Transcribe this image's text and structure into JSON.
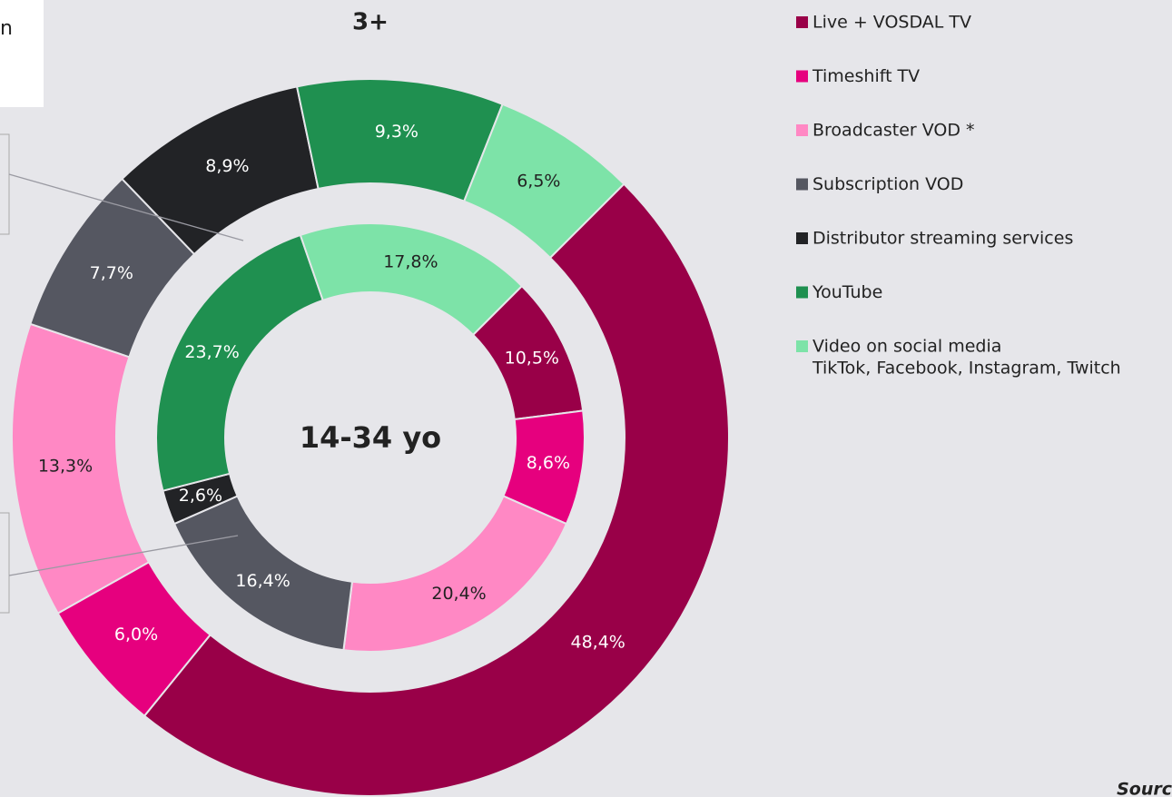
{
  "chart_data": {
    "type": "donut",
    "categories": [
      "Live + VOSDAL TV",
      "Timeshift TV",
      "Broadcaster VOD *",
      "Subscription VOD",
      "Distributor streaming services",
      "YouTube",
      "Video on social media"
    ],
    "legend_subtitle": "TikTok, Facebook, Instagram, Twitch",
    "colors": [
      "#990048",
      "#e6007e",
      "#ff88c4",
      "#555761",
      "#222326",
      "#1f9050",
      "#7de3a8"
    ],
    "series": [
      {
        "name": "3+",
        "values": [
          48.4,
          6.0,
          13.3,
          7.7,
          8.9,
          9.3,
          6.5
        ],
        "value_labels": [
          "48,4%",
          "6,0%",
          "13,3%",
          "7,7%",
          "8,9%",
          "9,3%",
          "6,5%"
        ]
      },
      {
        "name": "14-34 yo",
        "values": [
          10.5,
          8.6,
          20.4,
          16.4,
          2.6,
          23.7,
          17.8
        ],
        "value_labels": [
          "10,5%",
          "8,6%",
          "20,4%",
          "16,4%",
          "2,6%",
          "23,7%",
          "17,8%"
        ]
      }
    ],
    "corner_text": "n",
    "source": "Sourc"
  }
}
